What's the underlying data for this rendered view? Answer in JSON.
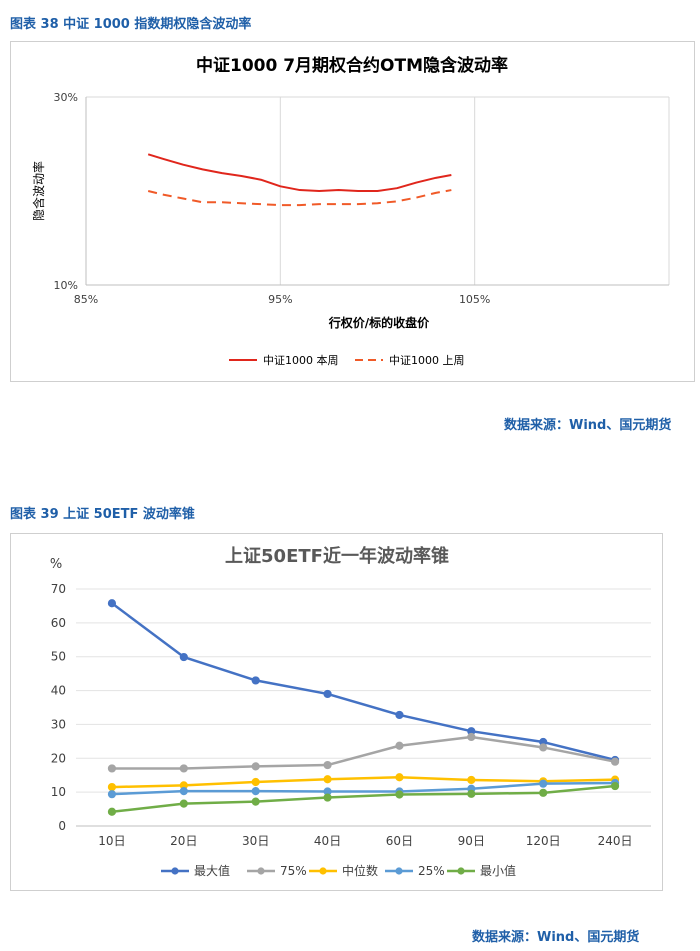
{
  "captions": {
    "fig38": "图表 38  中证 1000 指数期权隐含波动率",
    "fig39": "图表 39  上证 50ETF 波动率锥",
    "source1": "数据来源：Wind、国元期货",
    "source2": "数据来源：Wind、国元期货"
  },
  "chart_data": [
    {
      "type": "line",
      "title": "中证1000  7月期权合约OTM隐含波动率",
      "xlabel": "行权价/标的收盘价",
      "ylabel": "隐含波动率",
      "x_ticks": [
        "85%",
        "95%",
        "105%"
      ],
      "y_ticks": [
        "30%",
        "10%"
      ],
      "xlim": [
        85,
        105
      ],
      "ylim": [
        10,
        30
      ],
      "legend_position": "bottom",
      "series": [
        {
          "name": "中证1000  本周",
          "color": "#e0261c",
          "dash": "solid",
          "x": [
            88.2,
            89.0,
            90.0,
            91.0,
            92.0,
            93.0,
            94.0,
            95.0,
            96.0,
            97.0,
            98.0,
            99.0,
            100.0,
            101.0,
            102.0,
            103.0,
            103.8
          ],
          "y": [
            23.9,
            23.4,
            22.8,
            22.3,
            21.9,
            21.6,
            21.2,
            20.5,
            20.1,
            20.0,
            20.1,
            20.0,
            20.0,
            20.3,
            20.9,
            21.4,
            21.7
          ]
        },
        {
          "name": "中证1000  上周",
          "color": "#f05a28",
          "dash": "dashed",
          "x": [
            88.2,
            89.0,
            90.0,
            91.0,
            92.0,
            93.0,
            94.0,
            95.0,
            96.0,
            97.0,
            98.0,
            99.0,
            100.0,
            101.0,
            102.0,
            103.0,
            103.8
          ],
          "y": [
            20.0,
            19.6,
            19.2,
            18.8,
            18.8,
            18.7,
            18.6,
            18.5,
            18.5,
            18.6,
            18.6,
            18.6,
            18.7,
            18.9,
            19.3,
            19.8,
            20.1
          ]
        }
      ]
    },
    {
      "type": "line",
      "title": "上证50ETF近一年波动率锥",
      "ylabel": "%",
      "categories": [
        "10日",
        "20日",
        "30日",
        "40日",
        "60日",
        "90日",
        "120日",
        "240日"
      ],
      "ylim": [
        0,
        70
      ],
      "y_ticks": [
        "0",
        "10",
        "20",
        "30",
        "40",
        "50",
        "60",
        "70"
      ],
      "legend_position": "bottom",
      "series": [
        {
          "name": "最大值",
          "color": "#4472c4",
          "values": [
            65.8,
            49.9,
            43.0,
            39.0,
            32.8,
            28.0,
            24.8,
            19.5
          ]
        },
        {
          "name": "75%",
          "color": "#a5a5a5",
          "values": [
            17.0,
            17.0,
            17.6,
            18.0,
            23.7,
            26.3,
            23.2,
            19.0
          ]
        },
        {
          "name": "中位数",
          "color": "#ffc000",
          "values": [
            11.5,
            12.0,
            13.0,
            13.8,
            14.4,
            13.6,
            13.2,
            13.7
          ]
        },
        {
          "name": "25%",
          "color": "#5b9bd5",
          "values": [
            9.4,
            10.3,
            10.3,
            10.2,
            10.2,
            11.0,
            12.5,
            12.7
          ]
        },
        {
          "name": "最小值",
          "color": "#70ad47",
          "values": [
            4.2,
            6.6,
            7.2,
            8.4,
            9.3,
            9.5,
            9.8,
            11.8
          ]
        }
      ]
    }
  ]
}
